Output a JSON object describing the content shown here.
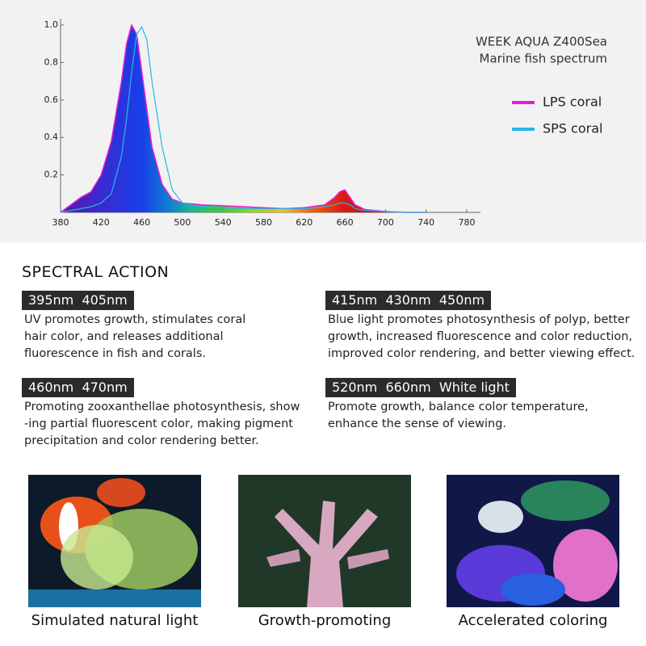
{
  "chart_data": {
    "type": "area",
    "title": "WEEK AQUA Z400Sea",
    "subtitle": "Marine fish spectrum",
    "x": [
      380,
      390,
      400,
      410,
      420,
      430,
      440,
      445,
      450,
      455,
      460,
      465,
      470,
      480,
      490,
      500,
      520,
      540,
      560,
      580,
      600,
      620,
      640,
      650,
      655,
      660,
      665,
      670,
      680,
      700,
      720,
      740
    ],
    "series": [
      {
        "name": "LPS coral",
        "color": "#e81cd8",
        "values": [
          0,
          0.04,
          0.08,
          0.11,
          0.2,
          0.38,
          0.7,
          0.9,
          1.0,
          0.95,
          0.75,
          0.55,
          0.35,
          0.15,
          0.07,
          0.05,
          0.04,
          0.035,
          0.03,
          0.025,
          0.02,
          0.025,
          0.04,
          0.08,
          0.11,
          0.12,
          0.08,
          0.04,
          0.015,
          0.005,
          0,
          0
        ]
      },
      {
        "name": "SPS coral",
        "color": "#26b8e8",
        "values": [
          0,
          0.01,
          0.02,
          0.03,
          0.05,
          0.1,
          0.3,
          0.5,
          0.75,
          0.95,
          0.99,
          0.92,
          0.7,
          0.35,
          0.12,
          0.05,
          0.03,
          0.025,
          0.02,
          0.02,
          0.02,
          0.02,
          0.03,
          0.04,
          0.05,
          0.05,
          0.04,
          0.02,
          0.01,
          0.005,
          0,
          0
        ]
      }
    ],
    "xlim": [
      380,
      780
    ],
    "xticks": [
      380,
      420,
      460,
      500,
      540,
      580,
      620,
      660,
      700,
      740,
      780
    ],
    "ylim": [
      0,
      1
    ],
    "yticks": [
      0.2,
      0.4,
      0.6,
      0.8,
      {
        "value": 1,
        "label": "1.0"
      }
    ],
    "legend": "right"
  },
  "section": {
    "title": "SPECTRAL ACTION",
    "items": [
      {
        "tag": "395nm  405nm",
        "text": [
          "UV promotes growth, stimulates coral",
          "hair color, and releases additional",
          "fluorescence in fish and corals."
        ]
      },
      {
        "tag": "415nm  430nm  450nm",
        "text": [
          "Blue light promotes photosynthesis of polyp, better",
          "growth, increased fluorescence and color reduction,",
          "improved color rendering, and better viewing effect."
        ]
      },
      {
        "tag": "460nm  470nm",
        "text": [
          "Promoting zooxanthellae photosynthesis, show",
          "-ing partial fluorescent color, making pigment",
          "precipitation and color rendering better."
        ]
      },
      {
        "tag": "520nm  660nm  White light",
        "text": [
          "Promote growth, balance color temperature,",
          "enhance the sense of viewing."
        ]
      }
    ]
  },
  "gallery": [
    {
      "caption": "Simulated natural light"
    },
    {
      "caption": "Growth-promoting"
    },
    {
      "caption": "Accelerated coloring"
    }
  ]
}
